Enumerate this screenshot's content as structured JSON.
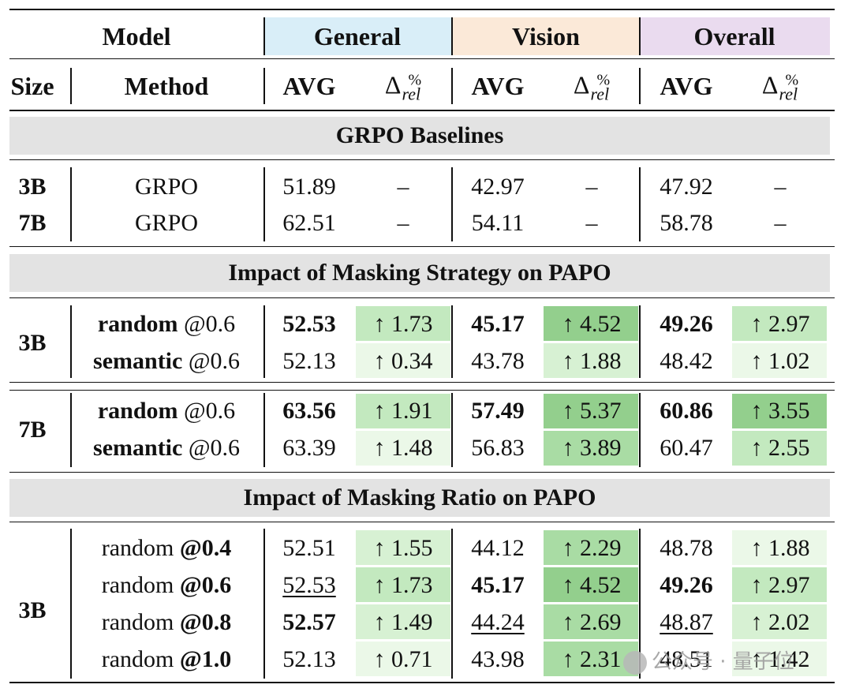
{
  "header": {
    "model": "Model",
    "groups": [
      {
        "label": "General",
        "color": "#d9eef8"
      },
      {
        "label": "Vision",
        "color": "#fbe9d8"
      },
      {
        "label": "Overall",
        "color": "#eadbef"
      }
    ],
    "size": "Size",
    "method": "Method",
    "avg": "AVG",
    "delta_symbol": "Δ",
    "delta_sup": "%",
    "delta_sub": "rel"
  },
  "sections": {
    "baselines": "GRPO Baselines",
    "strategy": "Impact of Masking Strategy on PAPO",
    "ratio": "Impact of Masking Ratio on PAPO"
  },
  "sizes": {
    "s3b": "3B",
    "s7b": "7B"
  },
  "colors": {
    "green_1": "#ebf8e8",
    "green_2": "#d7f1d3",
    "green_3": "#c3e9bf",
    "green_4": "#a9dca4",
    "green_5": "#93cf8d"
  },
  "baselines": [
    {
      "size": "3B",
      "method": "GRPO",
      "gen_avg": "51.89",
      "gen_d": "–",
      "vis_avg": "42.97",
      "vis_d": "–",
      "ov_avg": "47.92",
      "ov_d": "–"
    },
    {
      "size": "7B",
      "method": "GRPO",
      "gen_avg": "62.51",
      "gen_d": "–",
      "vis_avg": "54.11",
      "vis_d": "–",
      "ov_avg": "58.78",
      "ov_d": "–"
    }
  ],
  "strategy_3b": [
    {
      "method_a": "random",
      "method_b": "@0.6",
      "gen_avg": "52.53",
      "gen_d": "↑ 1.73",
      "vis_avg": "45.17",
      "vis_d": "↑ 4.52",
      "ov_avg": "49.26",
      "ov_d": "↑ 2.97"
    },
    {
      "method_a": "semantic",
      "method_b": "@0.6",
      "gen_avg": "52.13",
      "gen_d": "↑ 0.34",
      "vis_avg": "43.78",
      "vis_d": "↑ 1.88",
      "ov_avg": "48.42",
      "ov_d": "↑ 1.02"
    }
  ],
  "strategy_7b": [
    {
      "method_a": "random",
      "method_b": "@0.6",
      "gen_avg": "63.56",
      "gen_d": "↑ 1.91",
      "vis_avg": "57.49",
      "vis_d": "↑ 5.37",
      "ov_avg": "60.86",
      "ov_d": "↑ 3.55"
    },
    {
      "method_a": "semantic",
      "method_b": "@0.6",
      "gen_avg": "63.39",
      "gen_d": "↑ 1.48",
      "vis_avg": "56.83",
      "vis_d": "↑ 3.89",
      "ov_avg": "60.47",
      "ov_d": "↑ 2.55"
    }
  ],
  "ratio_3b": [
    {
      "method_a": "random",
      "method_b": "@0.4",
      "gen_avg": "52.51",
      "gen_d": "↑ 1.55",
      "vis_avg": "44.12",
      "vis_d": "↑ 2.29",
      "ov_avg": "48.78",
      "ov_d": "↑ 1.88"
    },
    {
      "method_a": "random",
      "method_b": "@0.6",
      "gen_avg": "52.53",
      "gen_d": "↑ 1.73",
      "vis_avg": "45.17",
      "vis_d": "↑ 4.52",
      "ov_avg": "49.26",
      "ov_d": "↑ 2.97"
    },
    {
      "method_a": "random",
      "method_b": "@0.8",
      "gen_avg": "52.57",
      "gen_d": "↑ 1.49",
      "vis_avg": "44.24",
      "vis_d": "↑ 2.69",
      "ov_avg": "48.87",
      "ov_d": "↑ 2.02"
    },
    {
      "method_a": "random",
      "method_b": "@1.0",
      "gen_avg": "52.13",
      "gen_d": "↑ 0.71",
      "vis_avg": "43.98",
      "vis_d": "↑ 2.31",
      "ov_avg": "48.51",
      "ov_d": "↑ 1.42"
    }
  ],
  "watermark": "公众号 · 量子位"
}
